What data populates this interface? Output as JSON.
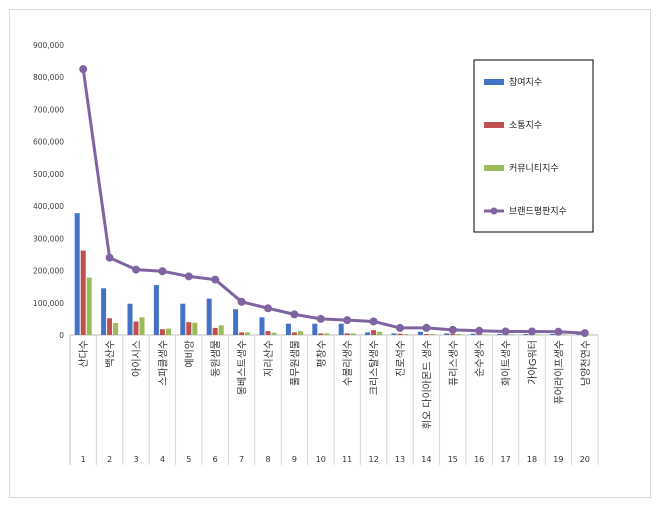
{
  "chart_data": {
    "type": "bar",
    "categories": [
      "산다수",
      "백산수",
      "아이시스",
      "스파클생수",
      "예비앙",
      "동원샘물",
      "몽베스트생수",
      "지리산수",
      "풀무원샘물",
      "평창수",
      "수볼리생수",
      "크리스탈생수",
      "진로석수",
      "휘오 다이아몬드 생수",
      "퓨리스생수",
      "순수생수",
      "화이트생수",
      "가야G워터",
      "퓨어라이프생수",
      "남양천연수"
    ],
    "index_labels": [
      "1",
      "2",
      "3",
      "4",
      "5",
      "6",
      "7",
      "8",
      "9",
      "10",
      "11",
      "12",
      "13",
      "14",
      "15",
      "16",
      "17",
      "18",
      "19",
      "20"
    ],
    "ylim": [
      0,
      900000
    ],
    "yticks": [
      "0",
      "100,000",
      "200,000",
      "300,000",
      "400,000",
      "500,000",
      "600,000",
      "700,000",
      "800,000",
      "900,000"
    ],
    "ytick_values": [
      0,
      100000,
      200000,
      300000,
      400000,
      500000,
      600000,
      700000,
      800000,
      900000
    ],
    "grid": false,
    "legend_position": "right",
    "series": [
      {
        "name": "참여지수",
        "kind": "bar",
        "color": "#4472c4",
        "values": [
          378000,
          145000,
          97000,
          155000,
          97000,
          113000,
          80000,
          55000,
          35000,
          35000,
          35000,
          8000,
          5000,
          10000,
          5000,
          4000,
          3000,
          3000,
          3000,
          2000
        ]
      },
      {
        "name": "소통지수",
        "kind": "bar",
        "color": "#c0504d",
        "values": [
          262000,
          52000,
          42000,
          18000,
          40000,
          22000,
          8000,
          12000,
          8000,
          5000,
          5000,
          15000,
          4000,
          3000,
          4000,
          3000,
          2000,
          2000,
          2000,
          1500
        ]
      },
      {
        "name": "커뮤니티지수",
        "kind": "bar",
        "color": "#9bbb59",
        "values": [
          178000,
          37000,
          55000,
          20000,
          38000,
          30000,
          8000,
          7000,
          12000,
          5000,
          5000,
          10000,
          3000,
          3000,
          3000,
          2000,
          2000,
          2000,
          2000,
          1500
        ]
      },
      {
        "name": "브랜드평판지수",
        "kind": "line",
        "color": "#8064a2",
        "values": [
          825000,
          240000,
          203000,
          198000,
          182000,
          172000,
          103000,
          83000,
          64000,
          50000,
          46000,
          42000,
          22000,
          22000,
          16000,
          13000,
          11000,
          11000,
          10000,
          6000
        ]
      }
    ]
  }
}
